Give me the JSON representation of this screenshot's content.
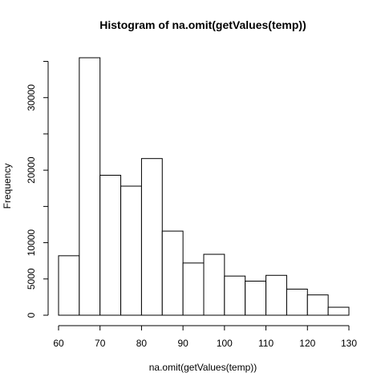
{
  "chart_data": {
    "type": "bar",
    "title": "Histogram of na.omit(getValues(temp))",
    "xlabel": "na.omit(getValues(temp))",
    "ylabel": "Frequency",
    "bins": [
      {
        "x0": 60,
        "x1": 65,
        "count": 8200
      },
      {
        "x0": 65,
        "x1": 70,
        "count": 35500
      },
      {
        "x0": 70,
        "x1": 75,
        "count": 19300
      },
      {
        "x0": 75,
        "x1": 80,
        "count": 17800
      },
      {
        "x0": 80,
        "x1": 85,
        "count": 21600
      },
      {
        "x0": 85,
        "x1": 90,
        "count": 11600
      },
      {
        "x0": 90,
        "x1": 95,
        "count": 7200
      },
      {
        "x0": 95,
        "x1": 100,
        "count": 8400
      },
      {
        "x0": 100,
        "x1": 105,
        "count": 5400
      },
      {
        "x0": 105,
        "x1": 110,
        "count": 4700
      },
      {
        "x0": 110,
        "x1": 115,
        "count": 5500
      },
      {
        "x0": 115,
        "x1": 120,
        "count": 3600
      },
      {
        "x0": 120,
        "x1": 125,
        "count": 2800
      },
      {
        "x0": 125,
        "x1": 130,
        "count": 1100
      }
    ],
    "xlim": [
      60,
      130
    ],
    "ylim": [
      0,
      35500
    ],
    "x_ticks": [
      60,
      70,
      80,
      90,
      100,
      110,
      120,
      130
    ],
    "y_ticks": [
      0,
      5000,
      10000,
      15000,
      20000,
      25000,
      30000,
      35000
    ],
    "y_tick_labels": [
      "0",
      "5000",
      "10000",
      "",
      "20000",
      "",
      "30000",
      ""
    ],
    "grid": false,
    "legend": "none",
    "colors": {
      "bar_fill": "#ffffff",
      "bar_stroke": "#000000"
    }
  }
}
